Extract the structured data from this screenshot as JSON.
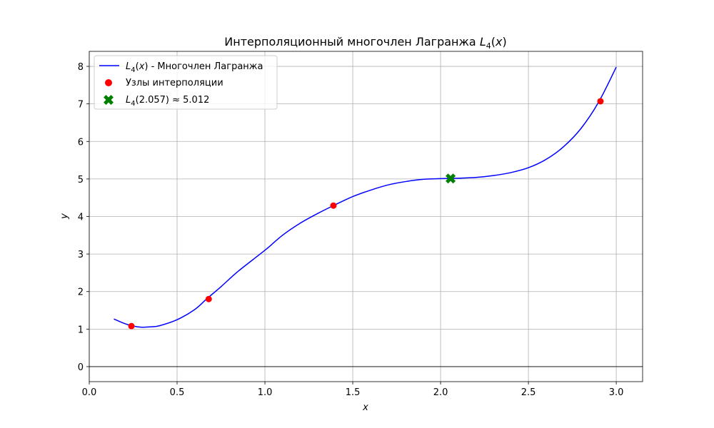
{
  "chart_data": {
    "type": "line",
    "title": "Интерполяционный многочлен Лагранжа L₄(x)",
    "title_main": "Интерполяционный многочлен Лагранжа",
    "xlabel": "x",
    "ylabel": "y",
    "xlim": [
      0.0,
      3.15
    ],
    "ylim": [
      -0.4,
      8.4
    ],
    "xticks": [
      0.0,
      0.5,
      1.0,
      1.5,
      2.0,
      2.5,
      3.0
    ],
    "xtick_labels": [
      "0.0",
      "0.5",
      "1.0",
      "1.5",
      "2.0",
      "2.5",
      "3.0"
    ],
    "yticks": [
      0,
      1,
      2,
      3,
      4,
      5,
      6,
      7,
      8
    ],
    "ytick_labels": [
      "0",
      "1",
      "2",
      "3",
      "4",
      "5",
      "6",
      "7",
      "8"
    ],
    "grid": true,
    "hline_y": 0,
    "legend_position": "top-left",
    "series": [
      {
        "name": "L₄(x) - Многочлен Лагранжа",
        "kind": "line",
        "color": "#0000ff",
        "points": [
          [
            0.14,
            1.27
          ],
          [
            0.2,
            1.15
          ],
          [
            0.25,
            1.08
          ],
          [
            0.3,
            1.05
          ],
          [
            0.35,
            1.06
          ],
          [
            0.4,
            1.09
          ],
          [
            0.5,
            1.25
          ],
          [
            0.6,
            1.52
          ],
          [
            0.67,
            1.81
          ],
          [
            0.75,
            2.13
          ],
          [
            0.85,
            2.55
          ],
          [
            1.0,
            3.1
          ],
          [
            1.1,
            3.5
          ],
          [
            1.2,
            3.82
          ],
          [
            1.3,
            4.08
          ],
          [
            1.39,
            4.29
          ],
          [
            1.5,
            4.53
          ],
          [
            1.6,
            4.7
          ],
          [
            1.7,
            4.84
          ],
          [
            1.8,
            4.93
          ],
          [
            1.9,
            4.99
          ],
          [
            2.0,
            5.01
          ],
          [
            2.057,
            5.012
          ],
          [
            2.1,
            5.02
          ],
          [
            2.2,
            5.04
          ],
          [
            2.3,
            5.09
          ],
          [
            2.4,
            5.17
          ],
          [
            2.5,
            5.3
          ],
          [
            2.6,
            5.52
          ],
          [
            2.7,
            5.86
          ],
          [
            2.8,
            6.35
          ],
          [
            2.9,
            7.05
          ],
          [
            3.0,
            7.98
          ]
        ]
      },
      {
        "name": "Узлы интерполяции",
        "kind": "scatter",
        "color": "#ff0000",
        "points": [
          [
            0.24,
            1.08
          ],
          [
            0.68,
            1.8
          ],
          [
            1.39,
            4.29
          ],
          [
            2.91,
            7.07
          ]
        ]
      },
      {
        "name": "L₄(2.057) ≈ 5.012",
        "kind": "marker",
        "color": "#008000",
        "points": [
          [
            2.057,
            5.012
          ]
        ]
      }
    ]
  }
}
